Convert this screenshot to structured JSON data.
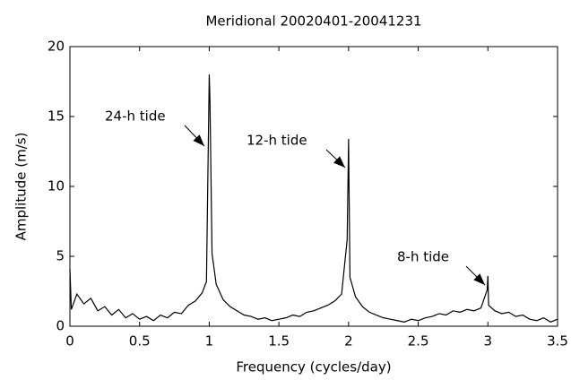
{
  "chart_data": {
    "type": "line",
    "title": "Meridional 20020401-20041231",
    "x_label": "Frequency (cycles/day)",
    "y_label": "Amplitude (m/s)",
    "xlim": [
      0,
      3.5
    ],
    "ylim": [
      0,
      20
    ],
    "xticks": [
      0,
      0.5,
      1,
      1.5,
      2,
      2.5,
      3,
      3.5
    ],
    "yticks": [
      0,
      5,
      10,
      15,
      20
    ],
    "grid": false,
    "annotations": [
      "24-h tide",
      "12-h tide",
      "8-h tide"
    ],
    "x": [
      0,
      0.01,
      0.05,
      0.1,
      0.15,
      0.2,
      0.25,
      0.3,
      0.35,
      0.4,
      0.45,
      0.5,
      0.55,
      0.6,
      0.65,
      0.7,
      0.75,
      0.8,
      0.85,
      0.9,
      0.95,
      0.98,
      1.0,
      1.005,
      1.02,
      1.05,
      1.1,
      1.15,
      1.2,
      1.25,
      1.3,
      1.35,
      1.4,
      1.45,
      1.5,
      1.55,
      1.6,
      1.65,
      1.7,
      1.75,
      1.8,
      1.85,
      1.9,
      1.95,
      1.99,
      2.0,
      2.01,
      2.05,
      2.1,
      2.15,
      2.2,
      2.25,
      2.3,
      2.35,
      2.4,
      2.45,
      2.5,
      2.55,
      2.6,
      2.65,
      2.7,
      2.75,
      2.8,
      2.85,
      2.9,
      2.95,
      2.995,
      3.0,
      3.005,
      3.05,
      3.1,
      3.15,
      3.2,
      3.25,
      3.3,
      3.35,
      3.4,
      3.45,
      3.5
    ],
    "series": [
      {
        "color": "#000000",
        "values": [
          4.1,
          1.2,
          2.3,
          1.6,
          2.0,
          1.1,
          1.4,
          0.8,
          1.2,
          0.6,
          0.9,
          0.5,
          0.7,
          0.4,
          0.8,
          0.6,
          1.0,
          0.9,
          1.5,
          1.8,
          2.4,
          3.2,
          18,
          16.2,
          5.2,
          3.0,
          1.9,
          1.4,
          1.1,
          0.8,
          0.7,
          0.5,
          0.6,
          0.4,
          0.5,
          0.6,
          0.8,
          0.7,
          1.0,
          1.1,
          1.3,
          1.5,
          1.8,
          2.3,
          6.2,
          13.4,
          3.5,
          2.1,
          1.4,
          1.0,
          0.8,
          0.6,
          0.5,
          0.4,
          0.3,
          0.5,
          0.4,
          0.6,
          0.7,
          0.9,
          0.8,
          1.1,
          1.0,
          1.2,
          1.1,
          1.3,
          2.6,
          3.6,
          1.5,
          1.1,
          0.9,
          1.0,
          0.7,
          0.8,
          0.5,
          0.4,
          0.6,
          0.3,
          0.5
        ]
      }
    ]
  }
}
